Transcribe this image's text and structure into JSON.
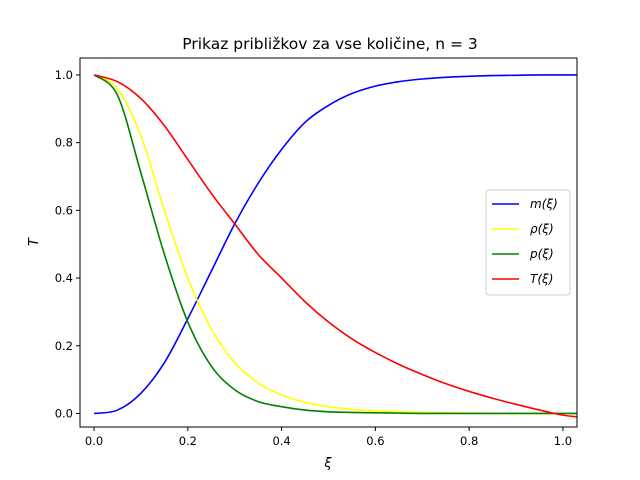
{
  "chart_data": {
    "type": "line",
    "title": "Prikaz približkov za vse količine, n = 3",
    "xlabel": "ξ",
    "ylabel": "T",
    "xlim": [
      -0.03,
      1.03
    ],
    "ylim": [
      -0.04,
      1.05
    ],
    "x_ticks": [
      "0.0",
      "0.2",
      "0.4",
      "0.6",
      "0.8",
      "1.0"
    ],
    "y_ticks": [
      "0.0",
      "0.2",
      "0.4",
      "0.6",
      "0.8",
      "1.0"
    ],
    "grid": false,
    "legend_position": "center-right",
    "x": [
      0.0,
      0.05,
      0.1,
      0.15,
      0.2,
      0.25,
      0.3,
      0.35,
      0.4,
      0.45,
      0.5,
      0.55,
      0.6,
      0.65,
      0.7,
      0.75,
      0.8,
      0.85,
      0.9,
      0.95,
      1.0,
      1.03
    ],
    "series": [
      {
        "name": "m(ξ)",
        "color": "#0000ff",
        "values": [
          0.0,
          0.01,
          0.06,
          0.15,
          0.28,
          0.42,
          0.56,
          0.68,
          0.78,
          0.86,
          0.91,
          0.945,
          0.967,
          0.98,
          0.988,
          0.993,
          0.996,
          0.998,
          0.999,
          1.0,
          1.0,
          1.0
        ]
      },
      {
        "name": "ρ(ξ)",
        "color": "#ffff00",
        "values": [
          1.0,
          0.96,
          0.82,
          0.6,
          0.4,
          0.25,
          0.15,
          0.09,
          0.055,
          0.033,
          0.02,
          0.012,
          0.008,
          0.005,
          0.003,
          0.002,
          0.001,
          0.0,
          0.0,
          0.0,
          0.0,
          0.0
        ]
      },
      {
        "name": "p(ξ)",
        "color": "#008000",
        "values": [
          1.0,
          0.94,
          0.71,
          0.47,
          0.27,
          0.14,
          0.07,
          0.035,
          0.02,
          0.01,
          0.005,
          0.003,
          0.002,
          0.001,
          0.0,
          0.0,
          0.0,
          0.0,
          0.0,
          0.0,
          0.0,
          0.0
        ]
      },
      {
        "name": "T(ξ)",
        "color": "#ff0000",
        "values": [
          1.0,
          0.98,
          0.93,
          0.85,
          0.75,
          0.65,
          0.56,
          0.47,
          0.4,
          0.33,
          0.27,
          0.22,
          0.18,
          0.145,
          0.115,
          0.088,
          0.065,
          0.045,
          0.027,
          0.01,
          -0.005,
          -0.01
        ]
      }
    ]
  }
}
